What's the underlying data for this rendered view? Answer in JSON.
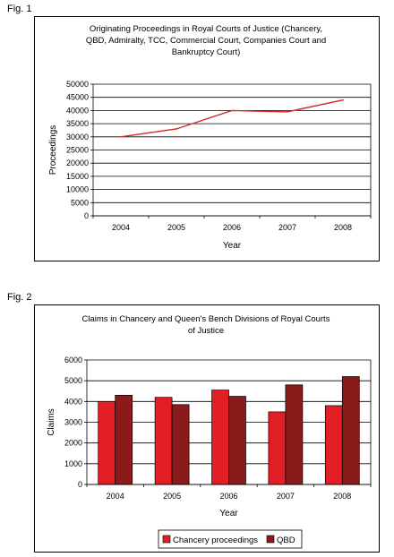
{
  "fig1": {
    "label": "Fig. 1",
    "chart_data": {
      "type": "line",
      "title": "Originating Proceedings in Royal Courts of Justice (Chancery, QBD, Admiralty, TCC, Commercial Court, Companies Court and Bankruptcy Court)",
      "title_lines": [
        "Originating Proceedings in Royal Courts of Justice (Chancery,",
        "QBD, Admiralty, TCC, Commercial Court, Companies Court and",
        "Bankruptcy Court)"
      ],
      "xlabel": "Year",
      "ylabel": "Proceedings",
      "categories": [
        "2004",
        "2005",
        "2006",
        "2007",
        "2008"
      ],
      "values": [
        30000,
        33000,
        40000,
        39500,
        44000
      ],
      "ylim": [
        0,
        50000
      ],
      "yticks": [
        0,
        5000,
        10000,
        15000,
        20000,
        25000,
        30000,
        35000,
        40000,
        45000,
        50000
      ],
      "grid": true,
      "line_color": "#d42a2a"
    }
  },
  "fig2": {
    "label": "Fig. 2",
    "chart_data": {
      "type": "bar",
      "title": "Claims in Chancery and Queen's Bench Divisions of Royal Courts of Justice",
      "title_lines": [
        "Claims in Chancery and Queen's Bench Divisions of Royal Courts",
        "of Justice"
      ],
      "xlabel": "Year",
      "ylabel": "Claims",
      "categories": [
        "2004",
        "2005",
        "2006",
        "2007",
        "2008"
      ],
      "series": [
        {
          "name": "Chancery proceedings",
          "values": [
            4000,
            4200,
            4550,
            3500,
            3800
          ],
          "color": "#e21e26"
        },
        {
          "name": "QBD",
          "values": [
            4300,
            3850,
            4250,
            4800,
            5200
          ],
          "color": "#8b1a1a"
        }
      ],
      "ylim": [
        0,
        6000
      ],
      "yticks": [
        0,
        1000,
        2000,
        3000,
        4000,
        5000,
        6000
      ],
      "grid": true,
      "legend": "bottom"
    }
  }
}
